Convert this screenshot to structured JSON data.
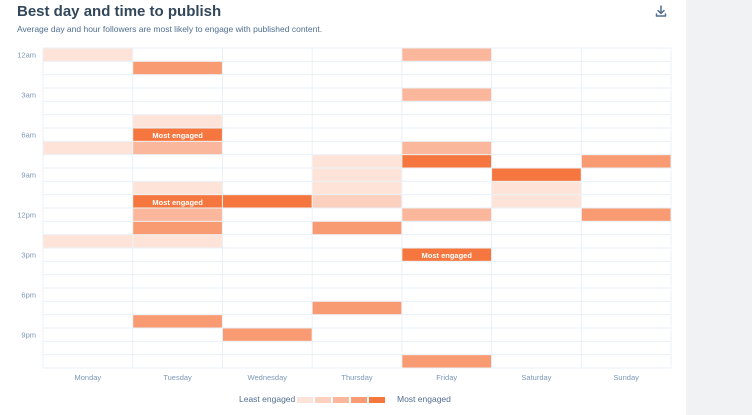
{
  "header": {
    "title": "Best day and time to publish",
    "subtitle": "Average day and hour followers are most likely to engage with published content."
  },
  "icons": {
    "download": "download-icon"
  },
  "legend": {
    "low_label": "Least engaged",
    "high_label": "Most engaged",
    "colors": [
      "#fde3d8",
      "#fcd0be",
      "#fab79b",
      "#f89a72",
      "#f5773f"
    ]
  },
  "chart_data": {
    "type": "heatmap",
    "title": "Best day and time to publish",
    "subtitle": "Average day and hour followers are most likely to engage with published content.",
    "x_categories": [
      "Monday",
      "Tuesday",
      "Wednesday",
      "Thursday",
      "Friday",
      "Saturday",
      "Sunday"
    ],
    "y_hours": [
      0,
      1,
      2,
      3,
      4,
      5,
      6,
      7,
      8,
      9,
      10,
      11,
      12,
      13,
      14,
      15,
      16,
      17,
      18,
      19,
      20,
      21,
      22,
      23
    ],
    "y_tick_labels": [
      {
        "hour": 0,
        "label": "12am"
      },
      {
        "hour": 3,
        "label": "3am"
      },
      {
        "hour": 6,
        "label": "6am"
      },
      {
        "hour": 9,
        "label": "9am"
      },
      {
        "hour": 12,
        "label": "12pm"
      },
      {
        "hour": 15,
        "label": "3pm"
      },
      {
        "hour": 18,
        "label": "6pm"
      },
      {
        "hour": 21,
        "label": "9pm"
      }
    ],
    "level_scale": [
      1,
      5
    ],
    "annotation_text": "Most engaged",
    "cells": [
      {
        "day": "Monday",
        "hour": 0,
        "level": 1
      },
      {
        "day": "Monday",
        "hour": 7,
        "level": 1
      },
      {
        "day": "Monday",
        "hour": 14,
        "level": 1
      },
      {
        "day": "Tuesday",
        "hour": 1,
        "level": 4
      },
      {
        "day": "Tuesday",
        "hour": 5,
        "level": 1
      },
      {
        "day": "Tuesday",
        "hour": 6,
        "level": 5,
        "annotation": "Most engaged"
      },
      {
        "day": "Tuesday",
        "hour": 7,
        "level": 3
      },
      {
        "day": "Tuesday",
        "hour": 10,
        "level": 1
      },
      {
        "day": "Tuesday",
        "hour": 11,
        "level": 5,
        "annotation": "Most engaged"
      },
      {
        "day": "Tuesday",
        "hour": 12,
        "level": 3
      },
      {
        "day": "Tuesday",
        "hour": 13,
        "level": 4
      },
      {
        "day": "Tuesday",
        "hour": 14,
        "level": 1
      },
      {
        "day": "Tuesday",
        "hour": 20,
        "level": 4
      },
      {
        "day": "Wednesday",
        "hour": 11,
        "level": 5
      },
      {
        "day": "Wednesday",
        "hour": 21,
        "level": 4
      },
      {
        "day": "Thursday",
        "hour": 8,
        "level": 1
      },
      {
        "day": "Thursday",
        "hour": 9,
        "level": 1
      },
      {
        "day": "Thursday",
        "hour": 10,
        "level": 1
      },
      {
        "day": "Thursday",
        "hour": 11,
        "level": 2
      },
      {
        "day": "Thursday",
        "hour": 13,
        "level": 4
      },
      {
        "day": "Thursday",
        "hour": 19,
        "level": 4
      },
      {
        "day": "Friday",
        "hour": 0,
        "level": 3
      },
      {
        "day": "Friday",
        "hour": 3,
        "level": 3
      },
      {
        "day": "Friday",
        "hour": 7,
        "level": 3
      },
      {
        "day": "Friday",
        "hour": 8,
        "level": 5
      },
      {
        "day": "Friday",
        "hour": 12,
        "level": 3
      },
      {
        "day": "Friday",
        "hour": 15,
        "level": 5,
        "annotation": "Most engaged"
      },
      {
        "day": "Friday",
        "hour": 23,
        "level": 4
      },
      {
        "day": "Saturday",
        "hour": 9,
        "level": 5
      },
      {
        "day": "Saturday",
        "hour": 10,
        "level": 1
      },
      {
        "day": "Saturday",
        "hour": 11,
        "level": 1
      },
      {
        "day": "Sunday",
        "hour": 8,
        "level": 4
      },
      {
        "day": "Sunday",
        "hour": 12,
        "level": 4
      }
    ],
    "grid": true
  }
}
